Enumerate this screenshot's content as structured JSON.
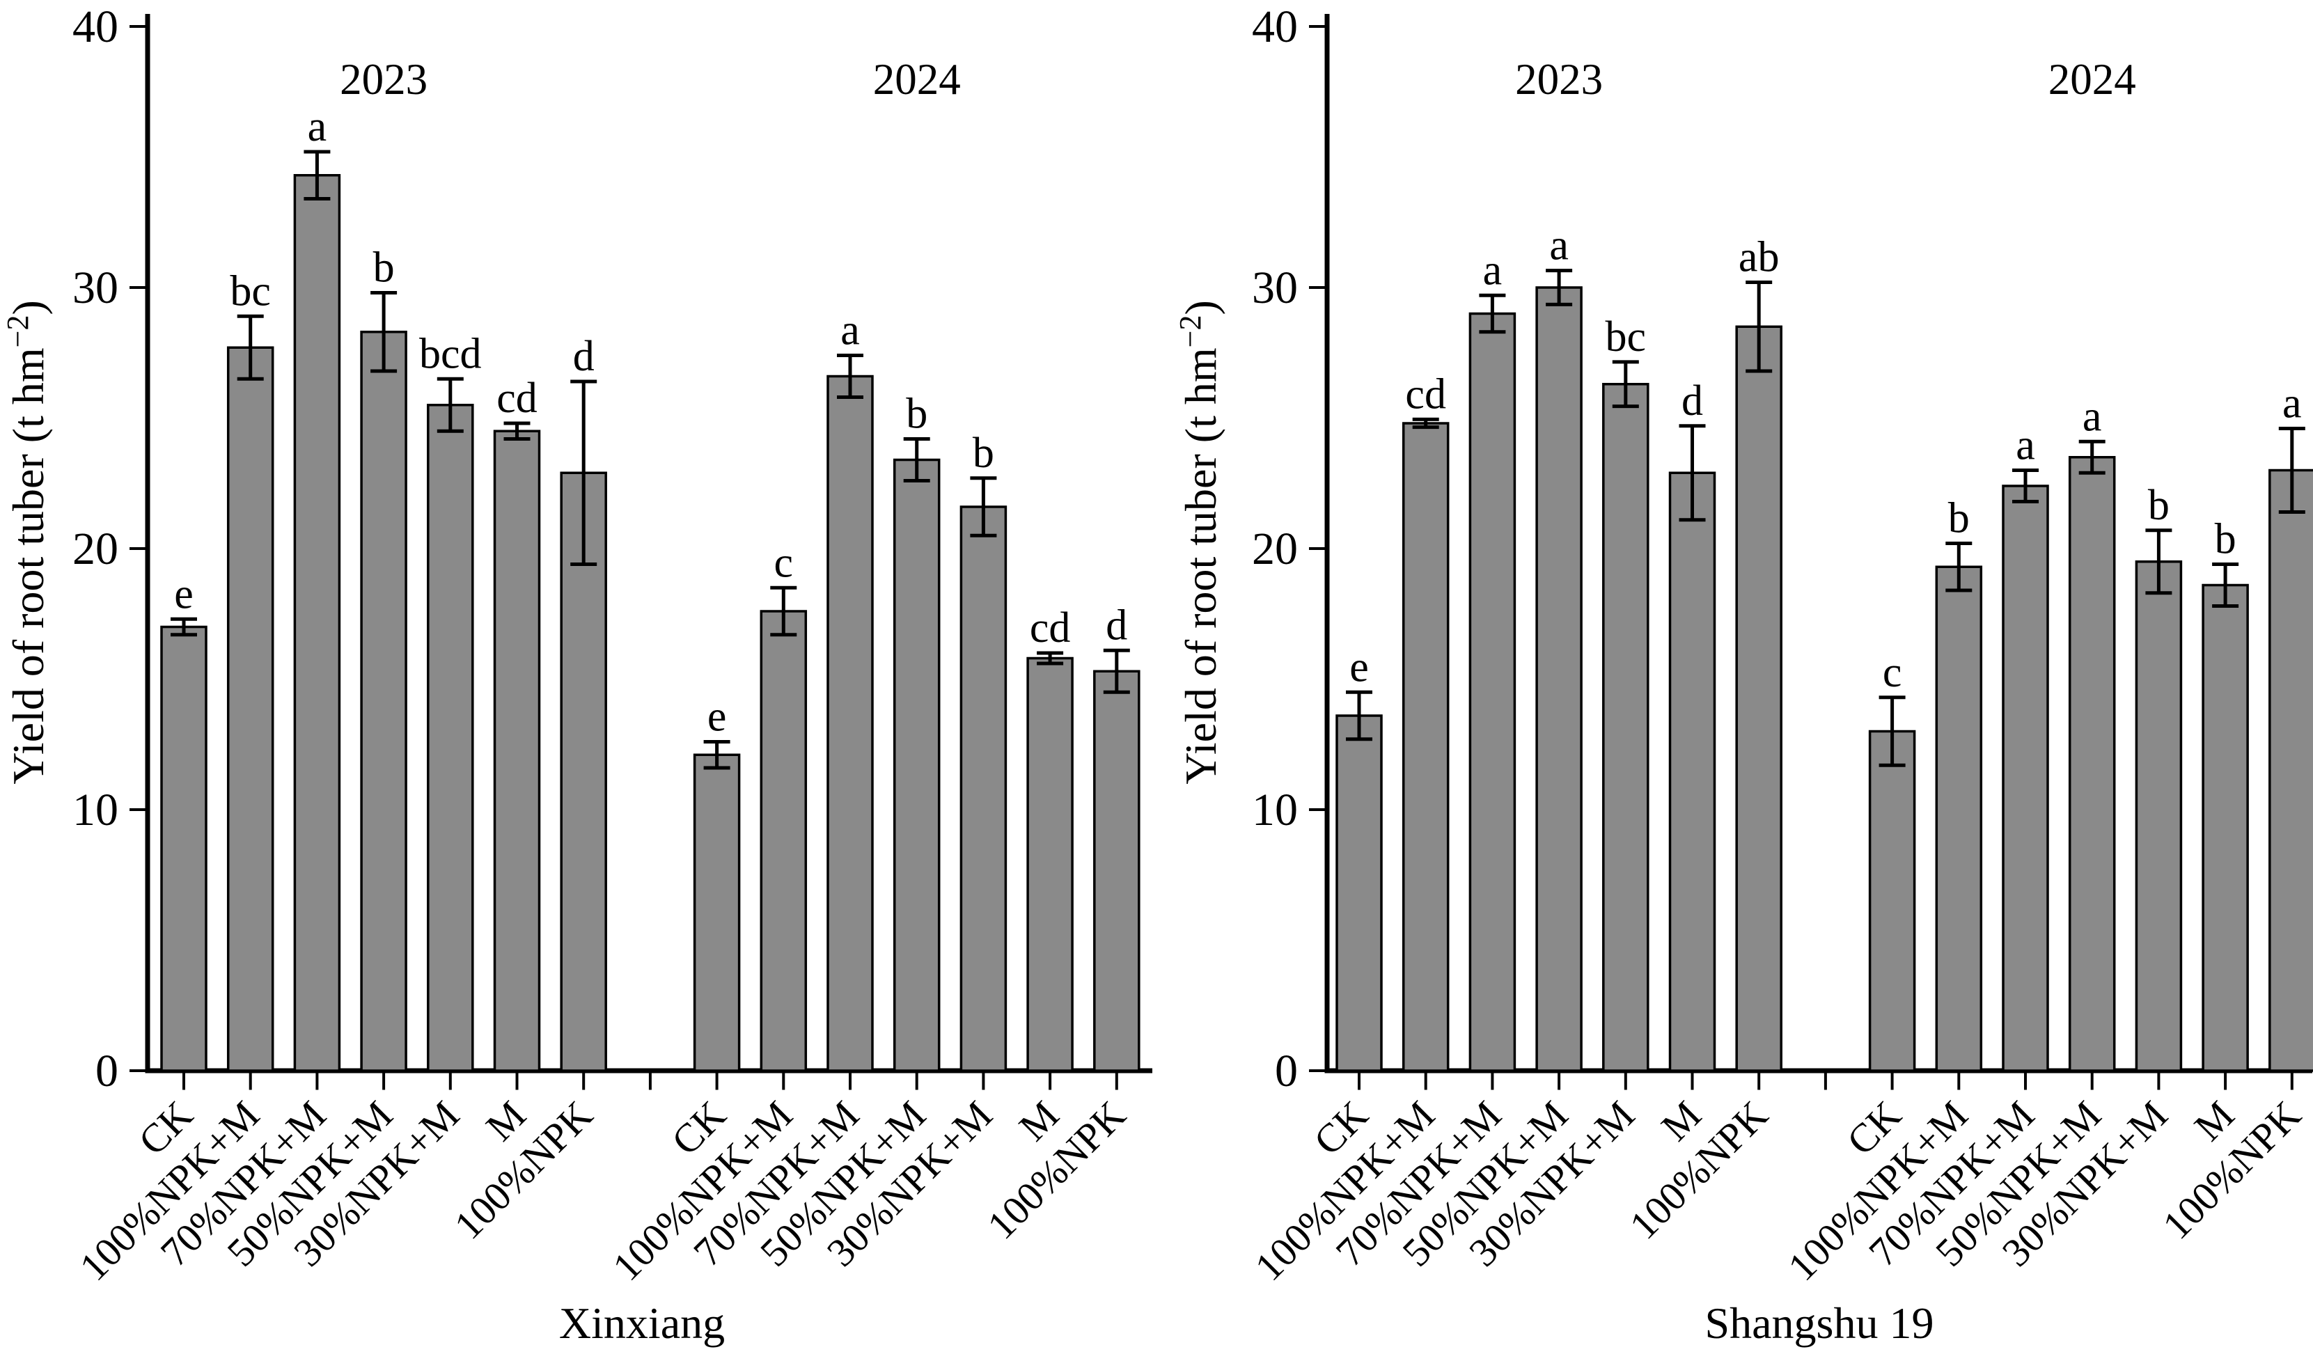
{
  "style": {
    "bar_fill": "#8a8a8a",
    "bar_stroke": "#000000",
    "axis_color": "#000000",
    "background": "#ffffff"
  },
  "chart_data": [
    {
      "type": "bar",
      "title": "Xinxiang",
      "ylabel": {
        "main": "Yield of  root tuber (t hm",
        "sup": "−2",
        "end": ")"
      },
      "ylim": [
        0,
        40
      ],
      "yticks": [
        0,
        10,
        20,
        30,
        40
      ],
      "categories": [
        "CK",
        "100%NPK+M",
        "70%NPK+M",
        "50%NPK+M",
        "30%NPK+M",
        "M",
        "100%NPK"
      ],
      "groups": [
        {
          "year": "2023",
          "values": [
            17.0,
            27.7,
            34.3,
            28.3,
            25.5,
            24.5,
            22.9
          ],
          "errors": [
            0.3,
            1.2,
            0.9,
            1.5,
            1.0,
            0.3,
            3.5
          ],
          "letters": [
            "e",
            "bc",
            "a",
            "b",
            "bcd",
            "cd",
            "d"
          ]
        },
        {
          "year": "2024",
          "values": [
            12.1,
            17.6,
            26.6,
            23.4,
            21.6,
            15.8,
            15.3
          ],
          "errors": [
            0.5,
            0.9,
            0.8,
            0.8,
            1.1,
            0.2,
            0.8
          ],
          "letters": [
            "e",
            "c",
            "a",
            "b",
            "b",
            "cd",
            "d"
          ]
        }
      ]
    },
    {
      "type": "bar",
      "title": "Shangshu 19",
      "ylabel": {
        "main": "Yield of root tuber (t hm",
        "sup": "−2",
        "end": ")"
      },
      "ylim": [
        0,
        40
      ],
      "yticks": [
        0,
        10,
        20,
        30,
        40
      ],
      "categories": [
        "CK",
        "100%NPK+M",
        "70%NPK+M",
        "50%NPK+M",
        "30%NPK+M",
        "M",
        "100%NPK"
      ],
      "groups": [
        {
          "year": "2023",
          "values": [
            13.6,
            24.8,
            29.0,
            30.0,
            26.3,
            22.9,
            28.5
          ],
          "errors": [
            0.9,
            0.15,
            0.7,
            0.65,
            0.85,
            1.8,
            1.7
          ],
          "letters": [
            "e",
            "cd",
            "a",
            "a",
            "bc",
            "d",
            "ab"
          ]
        },
        {
          "year": "2024",
          "values": [
            13.0,
            19.3,
            22.4,
            23.5,
            19.5,
            18.6,
            23.0
          ],
          "errors": [
            1.3,
            0.9,
            0.6,
            0.6,
            1.2,
            0.8,
            1.6
          ],
          "letters": [
            "c",
            "b",
            "a",
            "a",
            "b",
            "b",
            "a"
          ]
        }
      ]
    }
  ]
}
